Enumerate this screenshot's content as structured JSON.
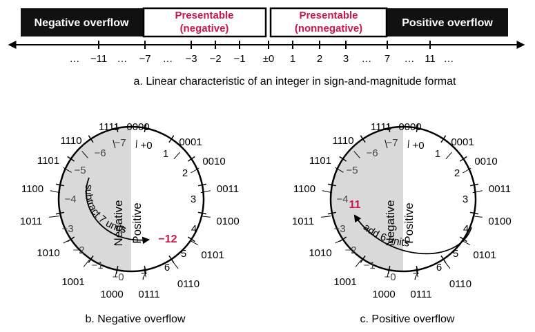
{
  "colors": {
    "accent": "#c8174a",
    "ink": "#000000",
    "dark_box": "#111111",
    "negative_shade": "#d9d9d9",
    "negative_text": "#444444"
  },
  "number_line": {
    "regions": {
      "negative_overflow": "Negative overflow",
      "presentable_negative": [
        "Presentable",
        "(negative)"
      ],
      "presentable_nonnegative": [
        "Presentable",
        "(nonnegative)"
      ],
      "positive_overflow": "Positive overflow"
    },
    "labels": [
      "…",
      "−11",
      "…",
      "−7",
      "…",
      "−3",
      "−2",
      "−1",
      "±0",
      "1",
      "2",
      "3",
      "…",
      "7",
      "…",
      "11",
      "…"
    ]
  },
  "caption_a": "a. Linear characteristic of an integer in sign-and-magnitude format",
  "caption_b": "b. Negative overflow",
  "caption_c": "c. Positive overflow",
  "wheel": {
    "half_labels": {
      "negative": "Negative",
      "positive": "Positive"
    },
    "positions": [
      {
        "code": "0000",
        "value": "+0"
      },
      {
        "code": "0001",
        "value": "1"
      },
      {
        "code": "0010",
        "value": "2"
      },
      {
        "code": "0011",
        "value": "3"
      },
      {
        "code": "0100",
        "value": "4"
      },
      {
        "code": "0101",
        "value": "5"
      },
      {
        "code": "0110",
        "value": "6"
      },
      {
        "code": "0111",
        "value": "7"
      },
      {
        "code": "1000",
        "value": "−0"
      },
      {
        "code": "1001",
        "value": "−1"
      },
      {
        "code": "1010",
        "value": "−2"
      },
      {
        "code": "1011",
        "value": "−3"
      },
      {
        "code": "1100",
        "value": "−4"
      },
      {
        "code": "1101",
        "value": "−5"
      },
      {
        "code": "1110",
        "value": "−6"
      },
      {
        "code": "1111",
        "value": "−7"
      }
    ]
  },
  "wheel_b": {
    "arrow_label": "subtract 7 units",
    "result_value": "−12"
  },
  "wheel_c": {
    "arrow_label": "add 6 units",
    "result_value": "11"
  }
}
